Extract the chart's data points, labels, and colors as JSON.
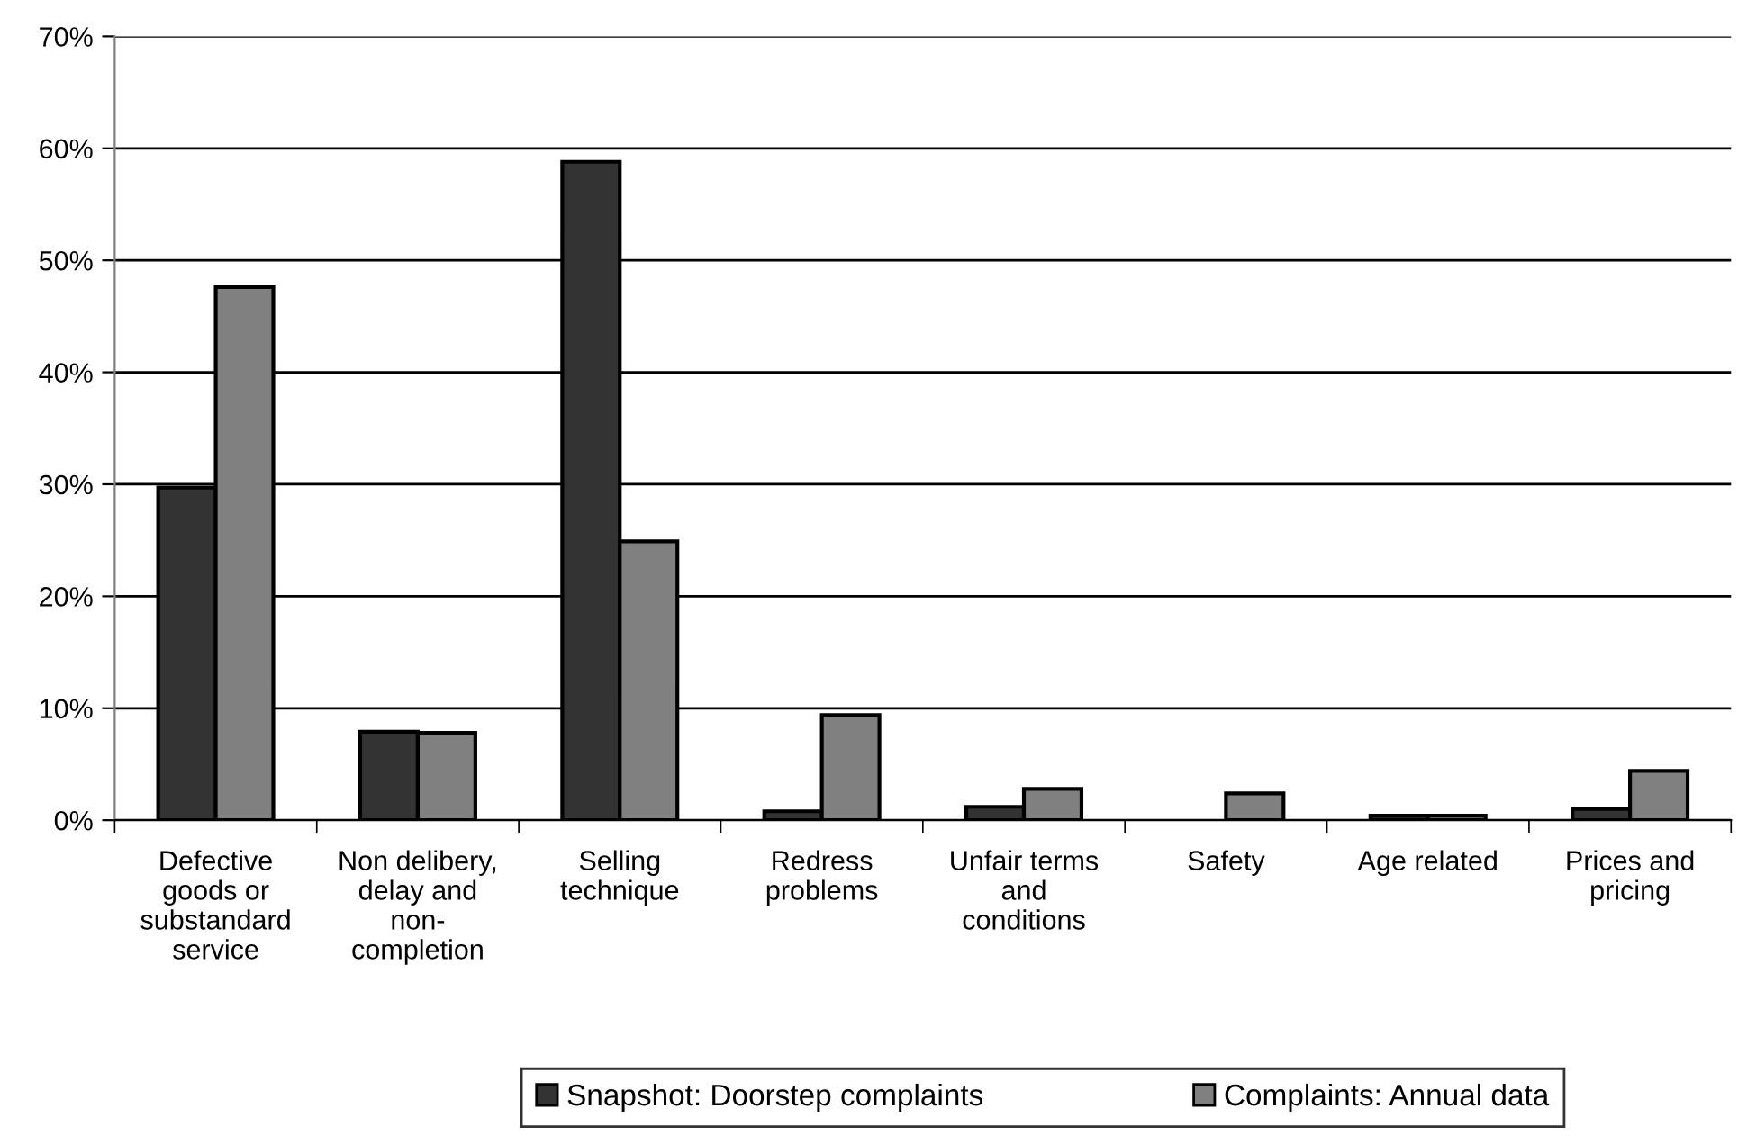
{
  "chart_data": {
    "type": "bar",
    "categories": [
      "Defective\ngoods or\nsubstandard\nservice",
      "Non delibery,\ndelay and\nnon-\ncompletion",
      "Selling\ntechnique",
      "Redress\nproblems",
      "Unfair terms\nand\nconditions",
      "Safety",
      "Age related",
      "Prices and\npricing"
    ],
    "series": [
      {
        "name": "Snapshot: Doorstep complaints",
        "color": "#333333",
        "values": [
          29.7,
          7.9,
          58.8,
          0.8,
          1.2,
          null,
          0.4,
          1.0
        ]
      },
      {
        "name": "Complaints: Annual data",
        "color": "#808080",
        "values": [
          47.6,
          7.8,
          24.9,
          9.4,
          2.8,
          2.4,
          0.4,
          4.4
        ]
      }
    ],
    "ylim": [
      0,
      70
    ],
    "yticks": [
      {
        "value": 0,
        "label": "0%"
      },
      {
        "value": 10,
        "label": "10%"
      },
      {
        "value": 20,
        "label": "20%"
      },
      {
        "value": 30,
        "label": "30%"
      },
      {
        "value": 40,
        "label": "40%"
      },
      {
        "value": 50,
        "label": "50%"
      },
      {
        "value": 60,
        "label": "60%"
      },
      {
        "value": 70,
        "label": "70%"
      }
    ],
    "grid": "y",
    "legend": "bottom"
  }
}
